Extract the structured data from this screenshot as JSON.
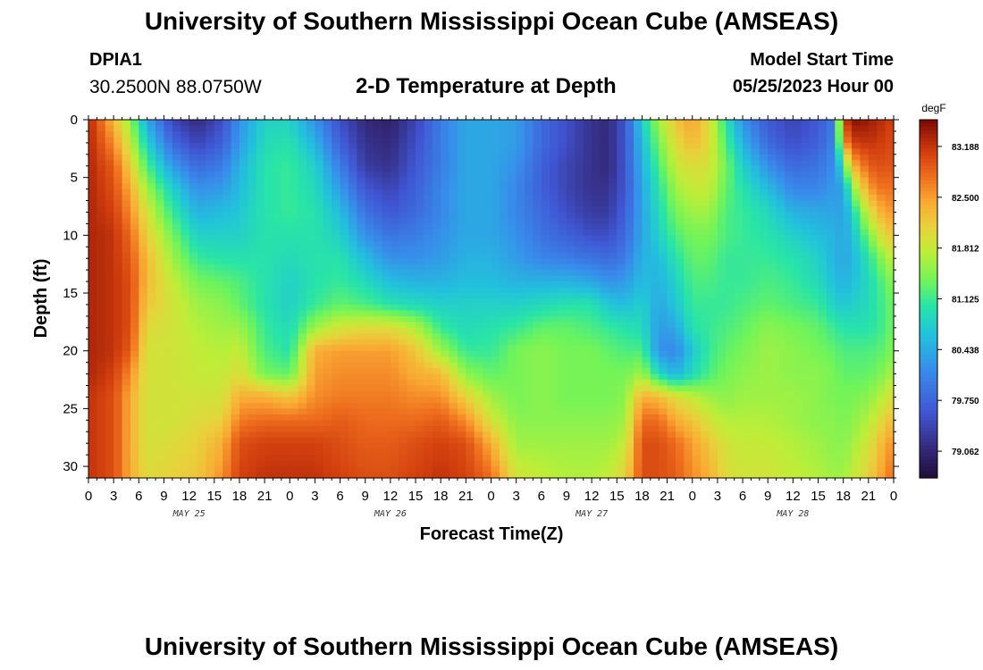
{
  "header": {
    "title": "University of Southern Mississippi Ocean Cube (AMSEAS)",
    "station_id": "DPIA1",
    "station_coords": "30.2500N  88.0750W",
    "subtitle": "2-D Temperature at Depth",
    "model_start_label": "Model Start Time",
    "model_start_value": "05/25/2023 Hour 00"
  },
  "footer": {
    "title": "University of Southern Mississippi Ocean Cube (AMSEAS)"
  },
  "chart_data": {
    "type": "heatmap",
    "title": "2-D Temperature at Depth",
    "xlabel": "Forecast Time(Z)",
    "ylabel": "Depth (ft)",
    "x_range_hours": [
      0,
      96
    ],
    "x_tick_labels": [
      "0",
      "3",
      "6",
      "9",
      "12",
      "15",
      "18",
      "21",
      "0",
      "3",
      "6",
      "9",
      "12",
      "15",
      "18",
      "21",
      "0",
      "3",
      "6",
      "9",
      "12",
      "15",
      "18",
      "21",
      "0",
      "3",
      "6",
      "9",
      "12",
      "15",
      "18",
      "21",
      "0"
    ],
    "date_labels": [
      "MAY 25",
      "MAY 26",
      "MAY 27",
      "MAY 28"
    ],
    "y_range": [
      0,
      31
    ],
    "y_ticks": [
      0,
      5,
      10,
      15,
      20,
      25,
      30
    ],
    "colorbar": {
      "units": "degF",
      "min": 78.7,
      "max": 83.55,
      "tick_values": [
        79.062,
        79.75,
        80.438,
        81.125,
        81.812,
        82.5,
        83.188
      ],
      "tick_labels": [
        "79.062",
        "79.750",
        "80.438",
        "81.125",
        "81.812",
        "82.500",
        "83.188"
      ]
    },
    "depth_levels_ft": [
      0,
      2,
      4,
      6,
      8,
      10,
      12,
      14,
      16,
      18,
      20,
      22,
      24,
      26,
      28,
      31
    ],
    "profiles": [
      {
        "hour": 0,
        "temps": [
          83.3,
          83.3,
          83.3,
          83.3,
          83.3,
          83.3,
          83.3,
          83.3,
          83.3,
          83.3,
          83.3,
          83.3,
          83.2,
          83.2,
          83.2,
          83.2
        ]
      },
      {
        "hour": 3,
        "temps": [
          82.3,
          82.6,
          82.9,
          83.0,
          83.1,
          83.2,
          83.2,
          83.2,
          83.2,
          83.2,
          83.2,
          83.1,
          83.0,
          83.0,
          83.0,
          83.0
        ]
      },
      {
        "hour": 5,
        "temps": [
          81.5,
          81.8,
          82.1,
          82.4,
          82.6,
          82.8,
          82.9,
          83.0,
          83.0,
          83.0,
          82.9,
          82.6,
          82.4,
          82.4,
          82.4,
          82.4
        ]
      },
      {
        "hour": 7,
        "temps": [
          80.4,
          80.8,
          81.2,
          81.6,
          81.9,
          82.1,
          82.3,
          82.3,
          82.2,
          82.0,
          81.9,
          81.9,
          81.9,
          81.9,
          81.9,
          82.0
        ]
      },
      {
        "hour": 10,
        "temps": [
          79.4,
          79.8,
          80.3,
          80.8,
          81.1,
          81.4,
          81.6,
          81.8,
          81.9,
          81.9,
          81.9,
          81.9,
          81.9,
          81.9,
          82.0,
          82.1
        ]
      },
      {
        "hour": 13,
        "temps": [
          79.1,
          79.4,
          79.8,
          80.2,
          80.5,
          80.8,
          81.1,
          81.4,
          81.6,
          81.7,
          81.8,
          81.8,
          81.9,
          82.0,
          82.1,
          82.2
        ]
      },
      {
        "hour": 16,
        "temps": [
          79.5,
          79.7,
          80.0,
          80.3,
          80.6,
          80.8,
          81.0,
          81.3,
          81.5,
          81.6,
          81.7,
          81.8,
          81.9,
          82.1,
          82.4,
          82.6
        ]
      },
      {
        "hour": 18,
        "temps": [
          80.2,
          80.3,
          80.5,
          80.6,
          80.7,
          80.8,
          81.0,
          81.2,
          81.3,
          81.6,
          81.8,
          82.0,
          82.4,
          82.7,
          83.0,
          83.1
        ]
      },
      {
        "hour": 21,
        "temps": [
          80.8,
          80.9,
          81.0,
          81.0,
          81.0,
          81.0,
          81.0,
          81.0,
          81.0,
          81.1,
          81.2,
          81.4,
          82.4,
          82.8,
          83.1,
          83.2
        ]
      },
      {
        "hour": 24,
        "temps": [
          80.8,
          81.0,
          81.1,
          81.1,
          81.1,
          81.0,
          80.9,
          80.8,
          80.8,
          80.9,
          81.0,
          81.3,
          82.2,
          82.8,
          83.1,
          83.2
        ]
      },
      {
        "hour": 27,
        "temps": [
          80.2,
          80.5,
          80.8,
          80.9,
          81.0,
          81.0,
          81.0,
          81.0,
          81.1,
          81.6,
          82.4,
          82.5,
          82.6,
          82.8,
          83.1,
          83.2
        ]
      },
      {
        "hour": 30,
        "temps": [
          79.5,
          79.7,
          80.0,
          80.3,
          80.6,
          80.8,
          81.0,
          81.1,
          81.3,
          81.9,
          82.5,
          82.6,
          82.7,
          82.9,
          83.0,
          83.1
        ]
      },
      {
        "hour": 33,
        "temps": [
          79.1,
          79.2,
          79.3,
          79.6,
          79.9,
          80.2,
          80.6,
          80.9,
          81.2,
          82.0,
          82.5,
          82.6,
          82.7,
          82.8,
          82.9,
          83.0
        ]
      },
      {
        "hour": 36,
        "temps": [
          79.0,
          79.1,
          79.2,
          79.4,
          79.6,
          79.9,
          80.2,
          80.6,
          81.0,
          82.0,
          82.5,
          82.6,
          82.7,
          82.8,
          82.9,
          83.0
        ]
      },
      {
        "hour": 39,
        "temps": [
          79.4,
          79.5,
          79.6,
          79.7,
          79.8,
          80.0,
          80.2,
          80.5,
          80.9,
          81.7,
          82.2,
          82.4,
          82.6,
          82.8,
          83.0,
          83.1
        ]
      },
      {
        "hour": 42,
        "temps": [
          80.0,
          80.0,
          80.0,
          80.1,
          80.1,
          80.2,
          80.3,
          80.5,
          80.8,
          81.1,
          81.6,
          82.3,
          82.6,
          82.9,
          83.1,
          83.2
        ]
      },
      {
        "hour": 45,
        "temps": [
          80.4,
          80.4,
          80.4,
          80.4,
          80.4,
          80.4,
          80.5,
          80.6,
          80.8,
          80.9,
          81.1,
          81.5,
          82.1,
          82.6,
          83.0,
          83.1
        ]
      },
      {
        "hour": 48,
        "temps": [
          80.4,
          80.4,
          80.4,
          80.4,
          80.4,
          80.4,
          80.5,
          80.6,
          80.8,
          81.0,
          81.1,
          81.3,
          81.6,
          81.9,
          82.4,
          82.8
        ]
      },
      {
        "hour": 51,
        "temps": [
          80.3,
          80.3,
          80.2,
          80.1,
          80.1,
          80.2,
          80.3,
          80.5,
          80.8,
          81.1,
          81.4,
          81.4,
          81.4,
          81.5,
          81.6,
          81.9
        ]
      },
      {
        "hour": 54,
        "temps": [
          79.8,
          79.8,
          79.7,
          79.7,
          79.8,
          79.9,
          80.1,
          80.5,
          80.9,
          81.3,
          81.5,
          81.5,
          81.5,
          81.5,
          81.6,
          81.8
        ]
      },
      {
        "hour": 57,
        "temps": [
          79.5,
          79.5,
          79.4,
          79.4,
          79.5,
          79.7,
          80.0,
          80.5,
          81.0,
          81.3,
          81.4,
          81.4,
          81.4,
          81.5,
          81.6,
          81.7
        ]
      },
      {
        "hour": 60,
        "temps": [
          79.2,
          79.2,
          79.2,
          79.2,
          79.3,
          79.5,
          79.9,
          80.4,
          81.0,
          81.2,
          81.4,
          81.4,
          81.4,
          81.5,
          81.6,
          81.7
        ]
      },
      {
        "hour": 62,
        "temps": [
          79.1,
          79.1,
          79.1,
          79.2,
          79.3,
          79.5,
          79.8,
          80.2,
          80.7,
          81.1,
          81.3,
          81.4,
          81.4,
          81.5,
          81.6,
          81.8
        ]
      },
      {
        "hour": 64,
        "temps": [
          79.6,
          79.6,
          79.6,
          79.6,
          79.7,
          79.8,
          80.0,
          80.3,
          80.6,
          81.0,
          81.2,
          81.4,
          81.5,
          81.6,
          81.8,
          82.1
        ]
      },
      {
        "hour": 66,
        "temps": [
          80.8,
          80.6,
          80.5,
          80.4,
          80.4,
          80.4,
          80.5,
          80.6,
          80.8,
          80.9,
          81.2,
          81.6,
          82.4,
          82.8,
          83.0,
          83.0
        ]
      },
      {
        "hour": 68,
        "temps": [
          81.6,
          81.4,
          81.2,
          81.0,
          80.9,
          80.8,
          80.6,
          80.5,
          80.4,
          80.3,
          80.2,
          80.9,
          82.3,
          82.8,
          83.0,
          83.0
        ]
      },
      {
        "hour": 70,
        "temps": [
          82.2,
          82.0,
          81.8,
          81.6,
          81.4,
          81.2,
          81.0,
          80.8,
          80.7,
          80.4,
          80.1,
          80.5,
          82.0,
          82.4,
          82.8,
          82.9
        ]
      },
      {
        "hour": 72,
        "temps": [
          82.5,
          82.3,
          82.0,
          81.8,
          81.6,
          81.4,
          81.3,
          81.2,
          81.1,
          81.0,
          80.7,
          80.9,
          81.8,
          82.2,
          82.5,
          82.6
        ]
      },
      {
        "hour": 74,
        "temps": [
          82.0,
          82.0,
          81.9,
          81.8,
          81.6,
          81.4,
          81.3,
          81.2,
          81.1,
          81.1,
          81.1,
          81.2,
          81.6,
          81.9,
          82.2,
          82.4
        ]
      },
      {
        "hour": 76,
        "temps": [
          81.0,
          81.2,
          81.4,
          81.3,
          81.2,
          81.2,
          81.1,
          81.1,
          81.1,
          81.2,
          81.3,
          81.4,
          81.5,
          81.7,
          81.9,
          82.0
        ]
      },
      {
        "hour": 78,
        "temps": [
          80.2,
          80.5,
          80.8,
          81.0,
          81.1,
          81.1,
          81.1,
          81.1,
          81.2,
          81.3,
          81.4,
          81.5,
          81.6,
          81.7,
          81.8,
          81.9
        ]
      },
      {
        "hour": 81,
        "temps": [
          79.6,
          79.8,
          80.2,
          80.6,
          80.9,
          81.0,
          81.1,
          81.2,
          81.3,
          81.5,
          81.6,
          81.6,
          81.6,
          81.7,
          81.8,
          81.9
        ]
      },
      {
        "hour": 84,
        "temps": [
          79.4,
          79.5,
          79.8,
          80.1,
          80.5,
          80.8,
          81.0,
          81.1,
          81.2,
          81.4,
          81.5,
          81.5,
          81.6,
          81.6,
          81.7,
          81.8
        ]
      },
      {
        "hour": 87,
        "temps": [
          79.6,
          79.7,
          79.9,
          80.1,
          80.4,
          80.6,
          80.8,
          80.9,
          81.1,
          81.3,
          81.4,
          81.5,
          81.5,
          81.5,
          81.6,
          81.7
        ]
      },
      {
        "hour": 89,
        "temps": [
          80.0,
          80.1,
          80.2,
          80.3,
          80.4,
          80.5,
          80.5,
          80.6,
          80.8,
          81.1,
          81.3,
          81.4,
          81.4,
          81.5,
          81.5,
          81.6
        ]
      },
      {
        "hour": 90,
        "temps": [
          83.0,
          82.4,
          81.0,
          80.3,
          80.3,
          80.4,
          80.4,
          80.5,
          80.7,
          81.0,
          81.2,
          81.3,
          81.4,
          81.4,
          81.5,
          81.6
        ]
      },
      {
        "hour": 91,
        "temps": [
          83.5,
          83.1,
          82.3,
          81.4,
          80.8,
          80.6,
          80.5,
          80.6,
          80.8,
          81.0,
          81.2,
          81.3,
          81.4,
          81.5,
          81.6,
          81.8
        ]
      },
      {
        "hour": 93,
        "temps": [
          83.4,
          83.2,
          82.9,
          82.5,
          81.9,
          81.4,
          81.0,
          80.9,
          80.9,
          81.0,
          81.2,
          81.3,
          81.5,
          81.7,
          81.9,
          82.1
        ]
      },
      {
        "hour": 95,
        "temps": [
          83.2,
          83.1,
          83.0,
          82.8,
          82.5,
          82.1,
          81.6,
          81.3,
          81.2,
          81.2,
          81.3,
          81.5,
          81.8,
          82.1,
          82.4,
          82.6
        ]
      },
      {
        "hour": 96,
        "temps": [
          83.1,
          83.0,
          82.9,
          82.7,
          82.5,
          82.2,
          81.8,
          81.5,
          81.4,
          81.4,
          81.5,
          81.7,
          82.0,
          82.3,
          82.6,
          82.8
        ]
      }
    ]
  }
}
